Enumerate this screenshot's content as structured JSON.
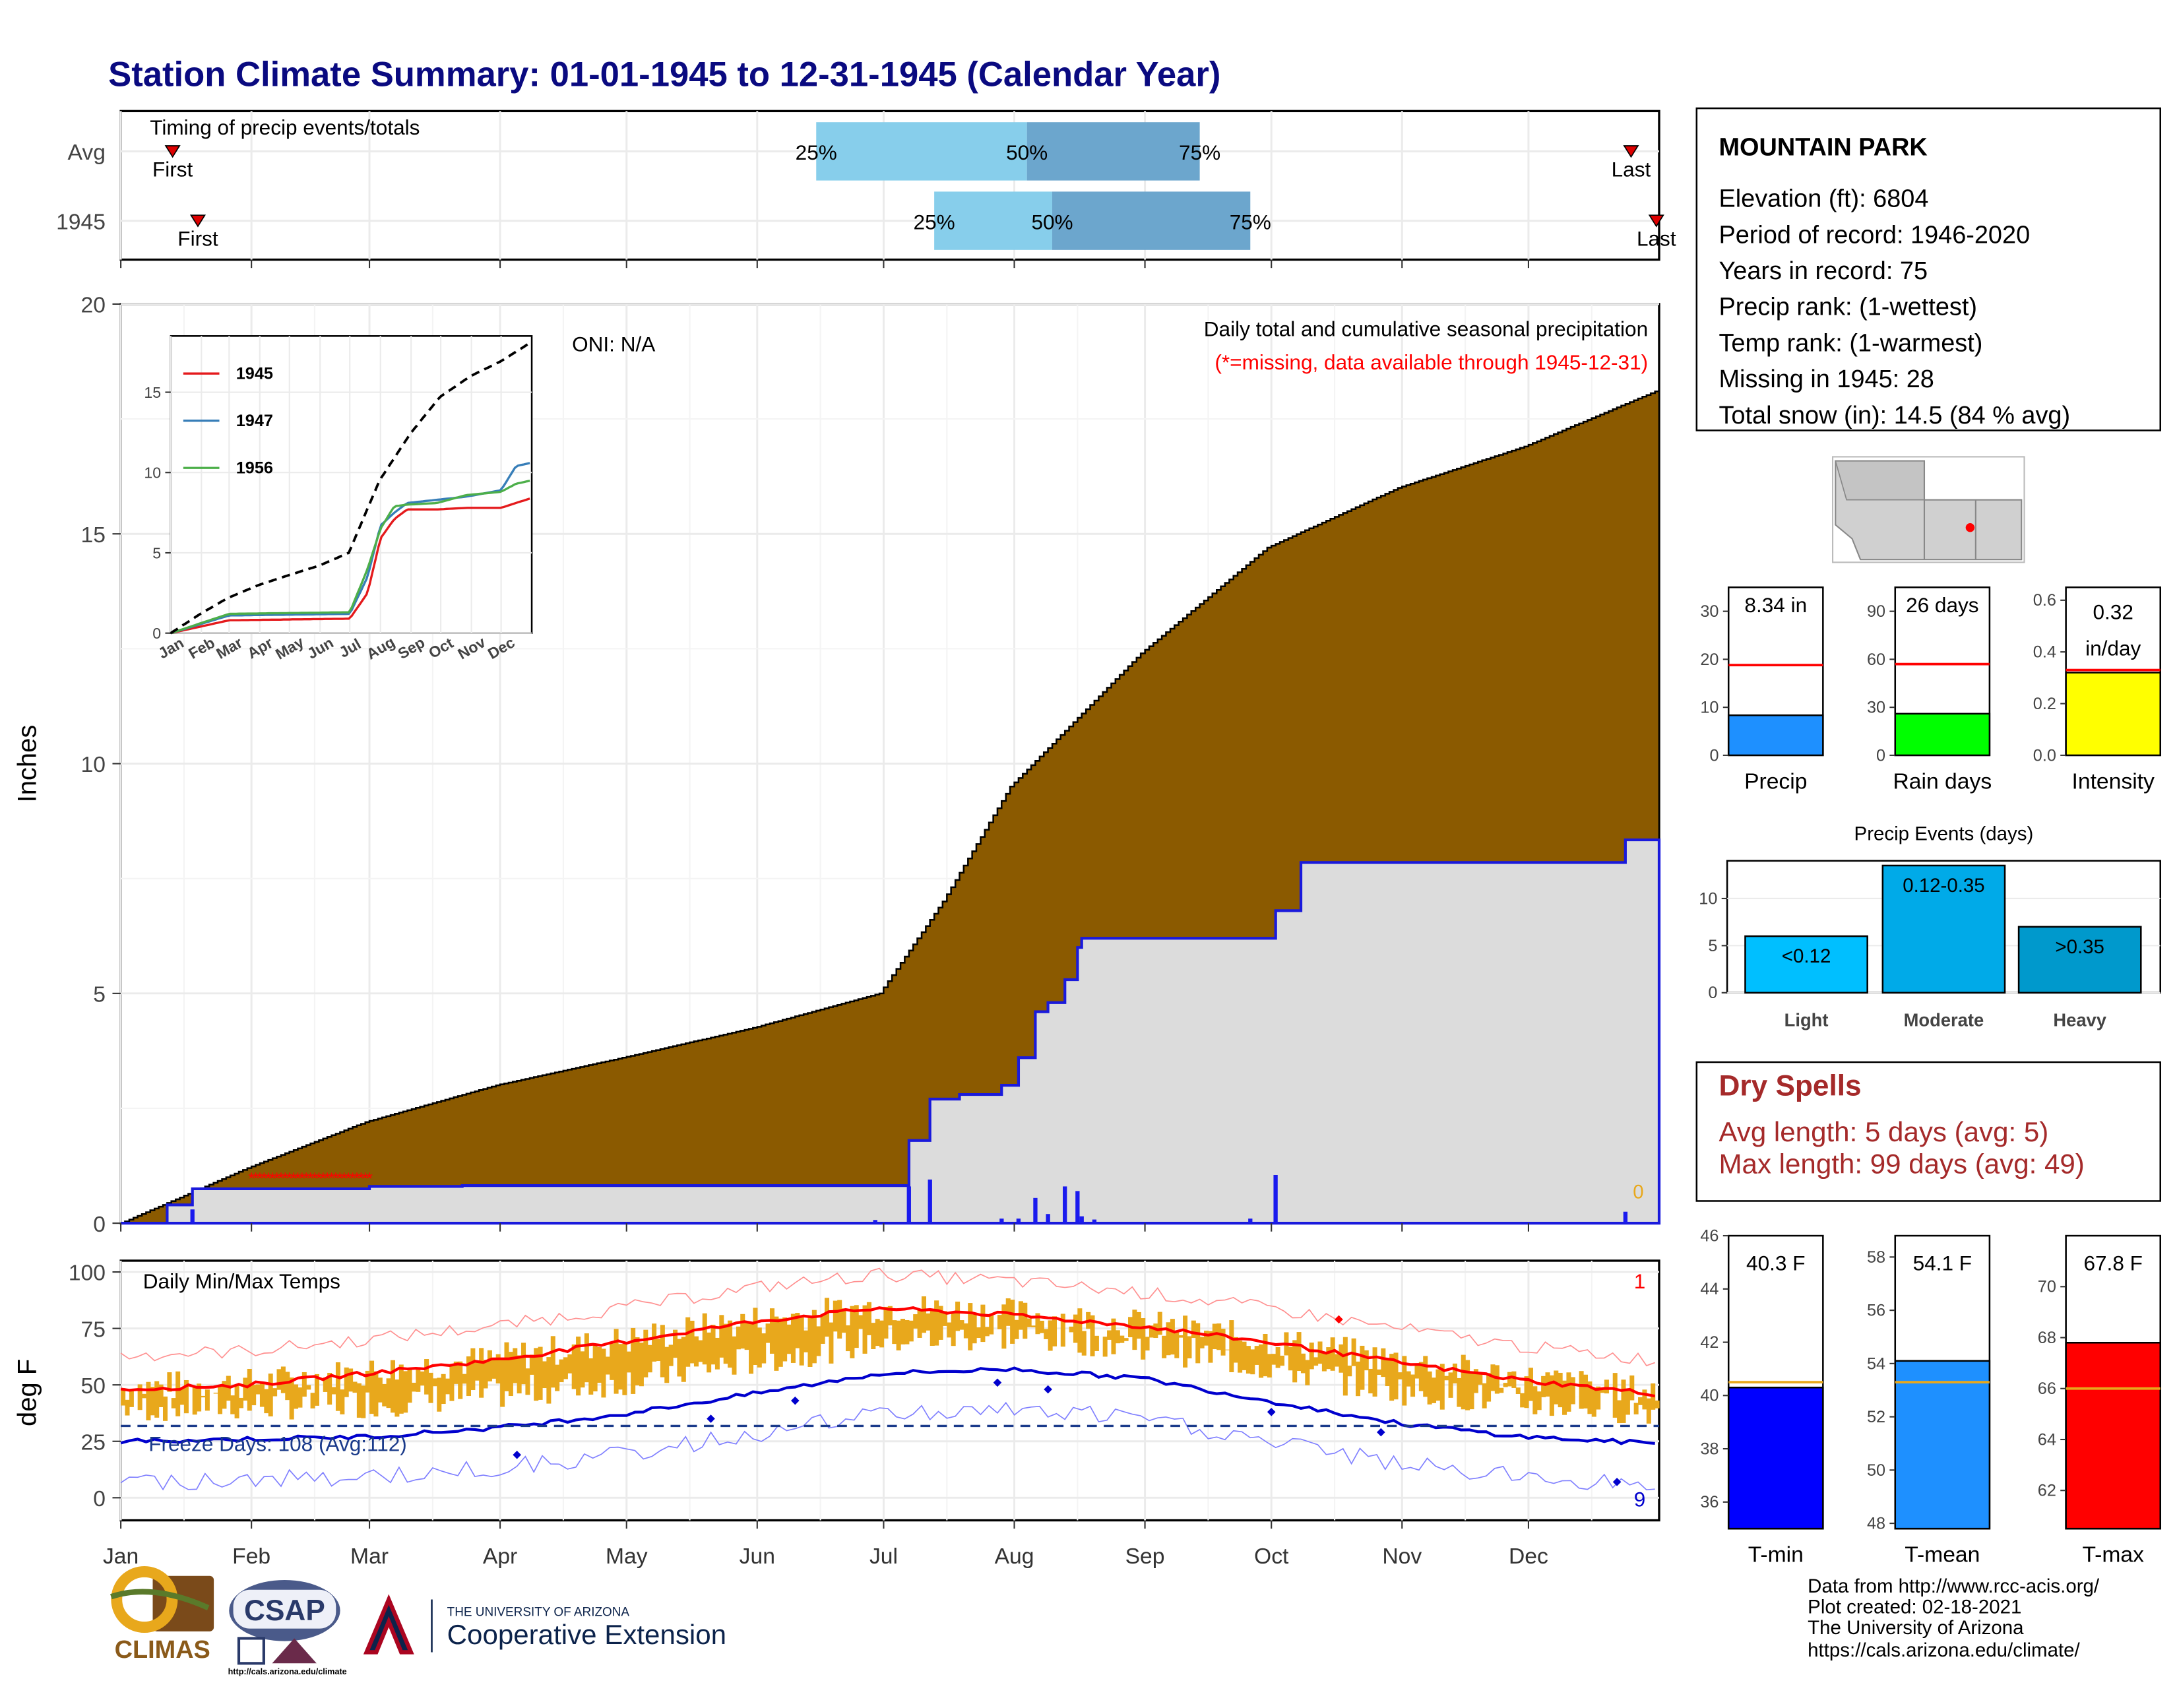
{
  "title": "Station Climate Summary: 01-01-1945 to 12-31-1945 (Calendar Year)",
  "colors": {
    "title": "#0a0a80",
    "cum_avg_fill": "#8b5a00",
    "cum_year_fill": "#dcdcdc",
    "cum_year_line": "#1a1adc",
    "daily_bars": "#1a1aee",
    "missing": "#ff0000",
    "quartile_light": "#87ceeb",
    "quartile_dark": "#6ca6cd",
    "temp_range": "#e8a81c",
    "tmax_avg": "#ff0000",
    "tmin_avg": "#0000cd",
    "precip_bar": "#1e90ff",
    "rain_days_bar": "#00ff00",
    "intensity_bar": "#ffff00",
    "light_bar": "#00bfff",
    "moderate_bar": "#00aae8",
    "heavy_bar": "#0099cc",
    "dry_spell_text": "#a52a2a"
  },
  "timing_panel": {
    "label": "Timing of precip events/totals",
    "rows": [
      {
        "name": "Avg",
        "first_day": 10,
        "last_day": 360,
        "q25": 166,
        "q50": 216,
        "q75": 257,
        "first_label": "First",
        "last_label": "Last",
        "q25_label": "25%",
        "q50_label": "50%",
        "q75_label": "75%"
      },
      {
        "name": "1945",
        "first_day": 16,
        "last_day": 366,
        "q25": 194,
        "q50": 222,
        "q75": 269,
        "first_label": "First",
        "last_label": "Last",
        "q25_label": "25%",
        "q50_label": "50%",
        "q75_label": "75%"
      }
    ]
  },
  "station_info": {
    "name": "MOUNTAIN PARK",
    "lines": [
      "Elevation (ft): 6804",
      "Period of record: 1946-2020",
      "Years in record: 75",
      "Precip rank:  (1-wettest)",
      "Temp rank:  (1-warmest)",
      "Missing in 1945: 28",
      "Total snow (in): 14.5 (84 % avg)"
    ]
  },
  "precip_main": {
    "ylabel": "Inches",
    "y_ticks": [
      "0",
      "5",
      "10",
      "15",
      "20"
    ],
    "oni": "ONI: N/A",
    "caption1": "Daily total and cumulative seasonal precipitation",
    "caption2": "(*=missing, data available through 1945-12-31)",
    "right_count": "0"
  },
  "inset": {
    "legend": [
      "1945",
      "1947",
      "1956"
    ],
    "legend_colors": [
      "#e41a1c",
      "#377eb8",
      "#4daf4a"
    ],
    "y_ticks": [
      "0",
      "5",
      "10",
      "15"
    ],
    "x_ticks": [
      "Jan",
      "Feb",
      "Mar",
      "Apr",
      "May",
      "Jun",
      "Jul",
      "Aug",
      "Sep",
      "Oct",
      "Nov",
      "Dec"
    ]
  },
  "temp_panel": {
    "label": "Daily Min/Max Temps",
    "ylabel": "deg F",
    "y_ticks": [
      "0",
      "25",
      "50",
      "75",
      "100"
    ],
    "freeze_text": "Freeze Days: 108 (Avg:112)",
    "top_right_count": "1",
    "bottom_right_count": "9"
  },
  "months": [
    "Jan",
    "Feb",
    "Mar",
    "Apr",
    "May",
    "Jun",
    "Jul",
    "Aug",
    "Sep",
    "Oct",
    "Nov",
    "Dec"
  ],
  "mini_bars": {
    "precip": {
      "label": "8.34 in",
      "name": "Precip",
      "ticks": [
        "0",
        "10",
        "20",
        "30"
      ]
    },
    "rain_days": {
      "label": "26 days",
      "name": "Rain days",
      "ticks": [
        "0",
        "30",
        "60",
        "90"
      ]
    },
    "intensity": {
      "label1": "0.32",
      "label2": "in/day",
      "name": "Intensity",
      "ticks": [
        "0.0",
        "0.2",
        "0.4",
        "0.6"
      ]
    }
  },
  "precip_events": {
    "title": "Precip Events (days)",
    "ticks": [
      "0",
      "5",
      "10"
    ],
    "bars": [
      {
        "label": "<0.12",
        "name": "Light",
        "value": 6
      },
      {
        "label": "0.12-0.35",
        "name": "Moderate",
        "value": 13.5
      },
      {
        "label": ">0.35",
        "name": "Heavy",
        "value": 7
      }
    ]
  },
  "dry_spells": {
    "title": "Dry Spells",
    "avg": "Avg length: 5 days (avg: 5)",
    "max": "Max length: 99 days (avg: 49)"
  },
  "temp_bars": {
    "tmin": {
      "label": "40.3 F",
      "name": "T-min",
      "ticks": [
        "36",
        "38",
        "40",
        "42",
        "44",
        "46"
      ]
    },
    "tmean": {
      "label": "54.1 F",
      "name": "T-mean",
      "ticks": [
        "48",
        "50",
        "52",
        "54",
        "56",
        "58"
      ]
    },
    "tmax": {
      "label": "67.8 F",
      "name": "T-max",
      "ticks": [
        "62",
        "64",
        "66",
        "68",
        "70"
      ]
    }
  },
  "footer": {
    "lines": [
      "Data from http://www.rcc-acis.org/",
      "Plot created: 02-18-2021",
      "The University of Arizona",
      "https://cals.arizona.edu/climate/"
    ],
    "climas": "CLIMAS",
    "csap": "CSAP",
    "csap_url": "http://cals.arizona.edu/climate",
    "ua_small": "THE UNIVERSITY OF ARIZONA",
    "ua_big": "Cooperative Extension"
  },
  "chart_data": [
    {
      "type": "area",
      "title": "Daily total and cumulative seasonal precipitation",
      "ylabel": "Inches",
      "ylim": [
        0,
        20
      ],
      "x_unit": "day of year (1945)",
      "avg_cumulative": {
        "x": [
          1,
          31,
          59,
          90,
          120,
          151,
          181,
          196,
          212,
          243,
          273,
          304,
          334,
          365
        ],
        "y": [
          0,
          1.2,
          2.2,
          3.0,
          3.6,
          4.25,
          5.0,
          7.0,
          9.5,
          12.4,
          14.7,
          16.0,
          16.9,
          18.1
        ]
      },
      "year_cumulative": {
        "x": [
          1,
          12,
          18,
          60,
          82,
          180,
          188,
          193,
          200,
          210,
          214,
          218,
          221,
          225,
          228,
          229,
          232,
          269,
          275,
          281,
          351,
          358,
          365
        ],
        "y": [
          0,
          0.4,
          0.75,
          0.8,
          0.82,
          0.82,
          1.8,
          2.7,
          2.8,
          3.0,
          3.6,
          4.6,
          4.8,
          5.3,
          6.0,
          6.2,
          6.2,
          6.2,
          6.8,
          7.85,
          7.85,
          8.34,
          8.34
        ]
      },
      "daily": {
        "x": [
          18,
          180,
          188,
          193,
          210,
          214,
          218,
          221,
          225,
          228,
          229,
          232,
          269,
          275,
          358
        ],
        "y": [
          0.3,
          0.07,
          0.8,
          0.95,
          0.1,
          0.1,
          0.55,
          0.2,
          0.8,
          0.7,
          0.15,
          0.08,
          0.1,
          1.05,
          0.25
        ]
      },
      "missing_days": {
        "x_range": [
          32,
          60
        ]
      }
    },
    {
      "type": "line",
      "title": "",
      "series": [
        {
          "name": "1945",
          "x": [
            1,
            60,
            182,
            200,
            213,
            227,
            240,
            270,
            300,
            335,
            350,
            365
          ],
          "y": [
            0,
            0.8,
            0.9,
            2.5,
            5.9,
            7.1,
            7.7,
            7.7,
            7.8,
            7.8,
            8.1,
            8.4
          ]
        },
        {
          "name": "1947",
          "x": [
            1,
            60,
            182,
            200,
            213,
            227,
            240,
            270,
            300,
            335,
            350,
            365
          ],
          "y": [
            0,
            1.1,
            1.2,
            3.5,
            6.7,
            7.5,
            8.1,
            8.3,
            8.5,
            8.9,
            10.4,
            10.6
          ]
        },
        {
          "name": "1956",
          "x": [
            1,
            60,
            182,
            200,
            213,
            227,
            240,
            270,
            300,
            335,
            350,
            365
          ],
          "y": [
            0,
            1.2,
            1.3,
            4.0,
            6.5,
            7.9,
            8.0,
            8.1,
            8.6,
            8.8,
            9.3,
            9.5
          ]
        }
      ],
      "avg": {
        "x": [
          1,
          31,
          59,
          90,
          120,
          151,
          181,
          212,
          243,
          273,
          304,
          334,
          365
        ],
        "y": [
          0,
          1.2,
          2.2,
          3.0,
          3.6,
          4.2,
          5.0,
          9.5,
          12.4,
          14.7,
          16.0,
          16.9,
          18.1
        ]
      },
      "ylim": [
        0,
        18
      ]
    },
    {
      "type": "line",
      "title": "Daily Min/Max Temps",
      "ylabel": "deg F",
      "ylim": [
        -10,
        105
      ],
      "tmax_avg": {
        "x": [
          1,
          31,
          59,
          90,
          120,
          151,
          181,
          212,
          243,
          273,
          304,
          334,
          365
        ],
        "y": [
          48,
          50,
          55,
          61,
          69,
          78,
          84,
          81,
          76,
          69,
          60,
          52,
          46
        ]
      },
      "tmin_avg": {
        "x": [
          1,
          31,
          59,
          90,
          120,
          151,
          181,
          212,
          243,
          273,
          304,
          334,
          365
        ],
        "y": [
          25,
          26,
          27,
          31,
          37,
          46,
          55,
          57,
          53,
          43,
          33,
          27,
          24
        ]
      },
      "freeze_line": 32
    },
    {
      "type": "bar",
      "categories": [
        "Precip",
        "Rain days",
        "Intensity"
      ],
      "values": [
        8.34,
        26,
        0.32
      ],
      "averages": [
        18.8,
        57,
        0.33
      ]
    },
    {
      "type": "bar",
      "title": "Precip Events (days)",
      "categories": [
        "Light",
        "Moderate",
        "Heavy"
      ],
      "values": [
        6,
        13.5,
        7
      ]
    },
    {
      "type": "bar",
      "categories": [
        "T-min",
        "T-mean",
        "T-max"
      ],
      "values": [
        40.3,
        54.1,
        67.8
      ],
      "averages": [
        40.5,
        53.3,
        66.0
      ]
    }
  ]
}
